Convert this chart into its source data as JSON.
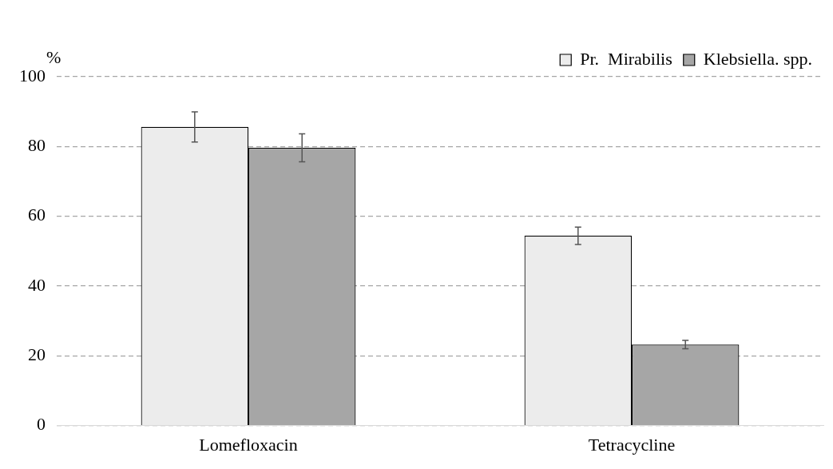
{
  "chart_data": {
    "type": "bar",
    "ylabel": "%",
    "categories": [
      "Lomefloxacin",
      "Tetracycline"
    ],
    "series": [
      {
        "name": "Pr.  Mirabilis",
        "color": "#ececec",
        "values": [
          85.6,
          54.4
        ],
        "errors": [
          4.3,
          2.5
        ]
      },
      {
        "name": "Klebsiella. spp.",
        "color": "#a6a6a6",
        "values": [
          79.6,
          23.2
        ],
        "errors": [
          4.0,
          1.2
        ]
      }
    ],
    "ylim": [
      0,
      100
    ],
    "yticks": [
      0,
      20,
      40,
      60,
      80,
      100
    ],
    "grid": "y",
    "legend": "top right"
  }
}
